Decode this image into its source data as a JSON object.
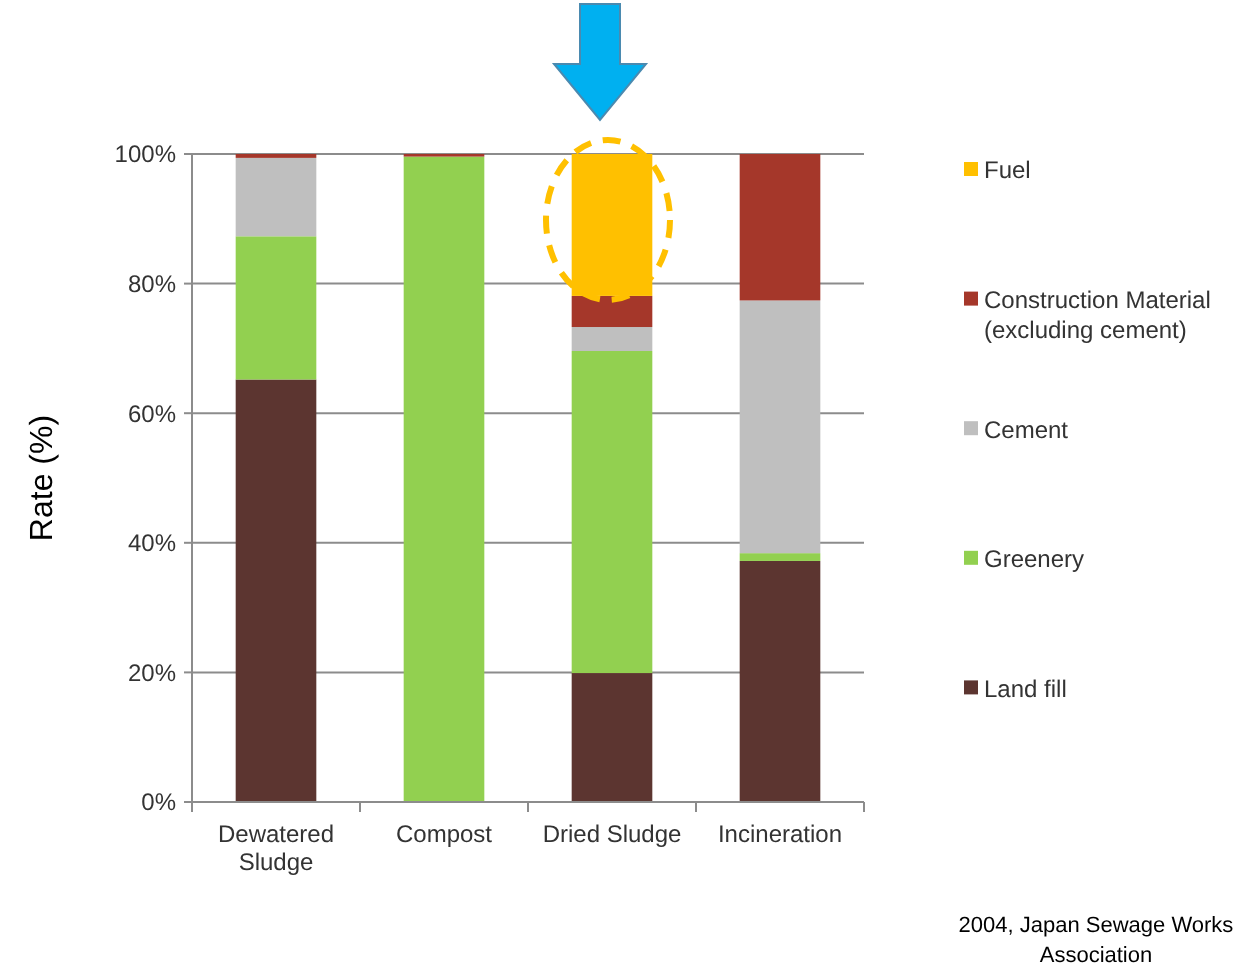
{
  "chart_data": {
    "type": "bar",
    "stacked": true,
    "ylabel": "Rate (%)",
    "categories": [
      "Dewatered Sludge",
      "Compost",
      "Dried Sludge",
      "Incineration"
    ],
    "series": [
      {
        "name": "Land fill",
        "color": "#5c3530",
        "values": [
          65.2,
          0,
          19.9,
          37.2
        ]
      },
      {
        "name": "Greenery",
        "color": "#92d050",
        "values": [
          22.1,
          99.6,
          49.7,
          1.2
        ]
      },
      {
        "name": "Cement",
        "color": "#bfbfbf",
        "values": [
          12.1,
          0,
          3.7,
          39.0
        ]
      },
      {
        "name": "Construction Material (excluding cement)",
        "color": "#a5372a",
        "values": [
          0.6,
          0.4,
          4.8,
          22.6
        ]
      },
      {
        "name": "Fuel",
        "color": "#ffc000",
        "values": [
          0,
          0,
          21.9,
          0
        ]
      }
    ],
    "ylim": [
      0,
      100
    ],
    "yticks": [
      {
        "value": 0,
        "label": "0%"
      },
      {
        "value": 20,
        "label": "20%"
      },
      {
        "value": 40,
        "label": "40%"
      },
      {
        "value": 60,
        "label": "60%"
      },
      {
        "value": 80,
        "label": "80%"
      },
      {
        "value": 100,
        "label": "100%"
      }
    ],
    "grid": "y",
    "legend": "right",
    "annotations": [
      "2004, Japan Sewage Works Association"
    ]
  }
}
